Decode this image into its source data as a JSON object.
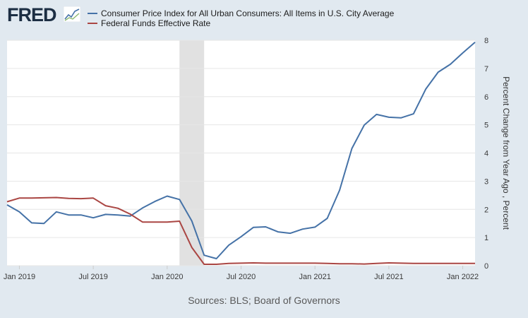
{
  "brand": {
    "logo_text": "FRED"
  },
  "source_text": "Sources: BLS; Board of Governors",
  "colors": {
    "cpi": "#4572a7",
    "fedfunds": "#aa4643",
    "recession": "#e1e1e1",
    "background": "#e1e9f0",
    "plot_bg": "#ffffff"
  },
  "chart_data": {
    "type": "line",
    "title": "",
    "xlabel": "",
    "ylabel": "Percent Change from Year Ago , Percent",
    "ylim": [
      0,
      8
    ],
    "yticks": [
      "0",
      "1",
      "2",
      "3",
      "4",
      "5",
      "6",
      "7",
      "8"
    ],
    "x_start": "2018-12",
    "x_end": "2022-02",
    "xticks": [
      "Jan 2019",
      "Jul 2019",
      "Jan 2020",
      "Jul 2020",
      "Jan 2021",
      "Jul 2021",
      "Jan 2022"
    ],
    "recession": {
      "start": "2020-02",
      "end": "2020-04"
    },
    "legend_position": "top",
    "grid": "horizontal",
    "x": [
      "2018-12",
      "2019-01",
      "2019-02",
      "2019-03",
      "2019-04",
      "2019-05",
      "2019-06",
      "2019-07",
      "2019-08",
      "2019-09",
      "2019-10",
      "2019-11",
      "2019-12",
      "2020-01",
      "2020-02",
      "2020-03",
      "2020-04",
      "2020-05",
      "2020-06",
      "2020-07",
      "2020-08",
      "2020-09",
      "2020-10",
      "2020-11",
      "2020-12",
      "2021-01",
      "2021-02",
      "2021-03",
      "2021-04",
      "2021-05",
      "2021-06",
      "2021-07",
      "2021-08",
      "2021-09",
      "2021-10",
      "2021-11",
      "2021-12",
      "2022-01",
      "2022-02"
    ],
    "series": [
      {
        "name": "Consumer Price Index for All Urban Consumers: All Items in U.S. City Average",
        "values": [
          2.16,
          1.91,
          1.52,
          1.5,
          1.91,
          1.8,
          1.8,
          1.7,
          1.82,
          1.8,
          1.76,
          2.05,
          2.28,
          2.47,
          2.35,
          1.59,
          0.37,
          0.25,
          0.73,
          1.03,
          1.36,
          1.38,
          1.2,
          1.15,
          1.3,
          1.37,
          1.68,
          2.68,
          4.16,
          4.99,
          5.37,
          5.27,
          5.25,
          5.39,
          6.27,
          6.87,
          7.15,
          7.55,
          7.93
        ]
      },
      {
        "name": "Federal Funds Effective Rate",
        "values": [
          2.27,
          2.4,
          2.4,
          2.41,
          2.42,
          2.39,
          2.38,
          2.4,
          2.13,
          2.04,
          1.83,
          1.55,
          1.55,
          1.55,
          1.58,
          0.65,
          0.05,
          0.05,
          0.08,
          0.09,
          0.1,
          0.09,
          0.09,
          0.09,
          0.09,
          0.09,
          0.08,
          0.07,
          0.07,
          0.06,
          0.08,
          0.1,
          0.09,
          0.08,
          0.08,
          0.08,
          0.08,
          0.08,
          0.08
        ]
      }
    ]
  }
}
